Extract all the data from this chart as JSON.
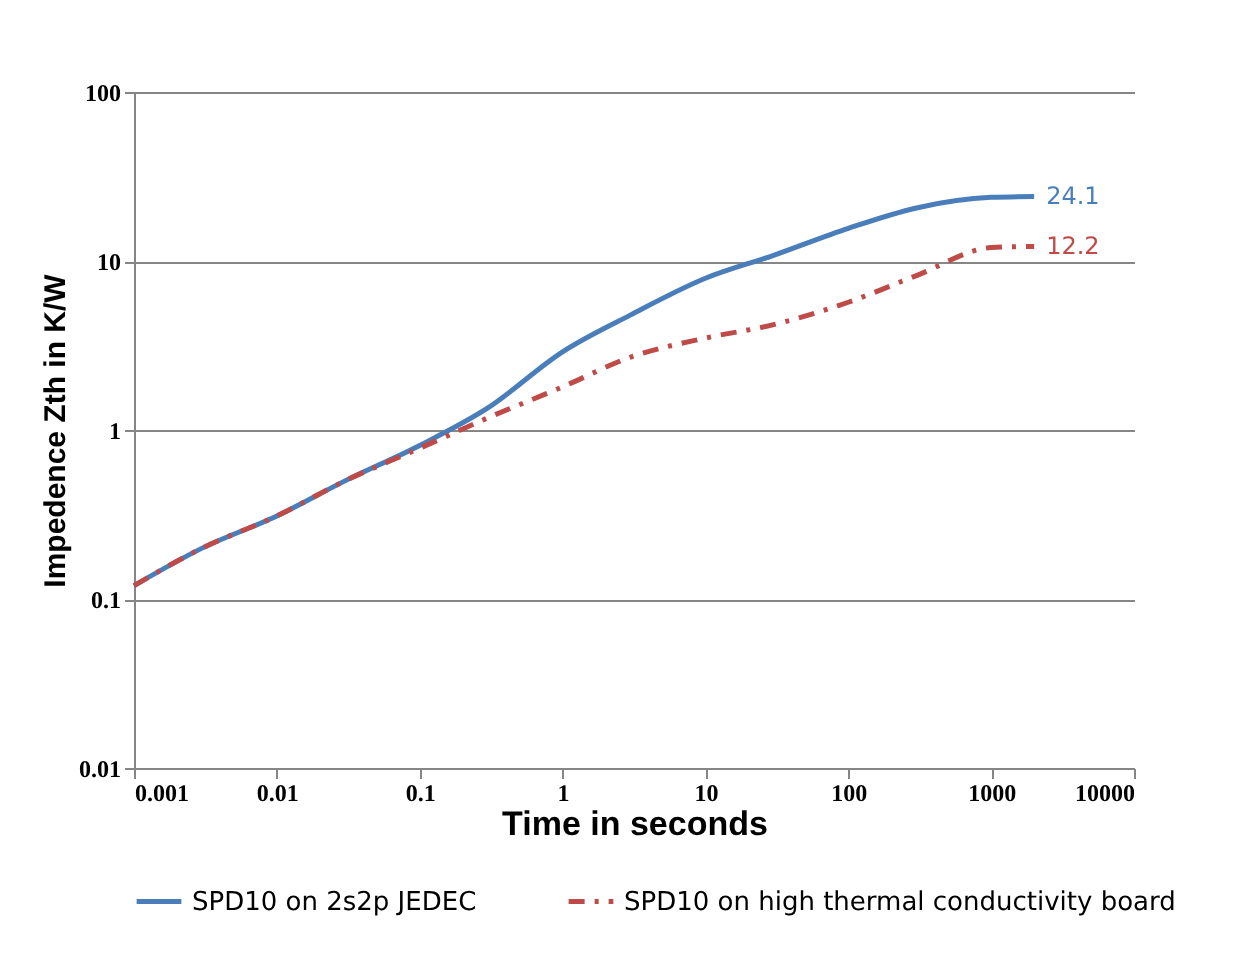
{
  "chart_data": {
    "type": "line",
    "xlabel": "Time in seconds",
    "ylabel": "Impedence Zth in K/W",
    "log": "xy",
    "xlim": [
      0.001,
      10000
    ],
    "ylim": [
      0.01,
      100
    ],
    "xticks": [
      0.001,
      0.01,
      0.1,
      1,
      10,
      100,
      1000,
      10000
    ],
    "yticks": [
      0.01,
      0.1,
      1,
      10,
      100
    ],
    "grid": "y",
    "legend": "bottom",
    "marker": "none",
    "series": [
      {
        "name": "SPD10 on 2s2p JEDEC",
        "color": "#4a7ebb",
        "line_style": "solid",
        "x": [
          0.001,
          0.003,
          0.01,
          0.03,
          0.1,
          0.3,
          1,
          3,
          10,
          30,
          100,
          300,
          1000,
          2000
        ],
        "values": [
          0.12,
          0.2,
          0.31,
          0.5,
          0.81,
          1.35,
          2.9,
          4.8,
          7.9,
          10.8,
          15.6,
          20.6,
          23.8,
          24.1
        ],
        "value_labels": [
          null,
          null,
          null,
          null,
          null,
          null,
          null,
          null,
          null,
          null,
          null,
          null,
          null,
          "24.1"
        ]
      },
      {
        "name": "SPD10 on high thermal conductivity board",
        "color": "#be4b48",
        "line_style": "dashed",
        "x": [
          0.001,
          0.003,
          0.01,
          0.03,
          0.1,
          0.3,
          1,
          3,
          10,
          30,
          100,
          300,
          1000,
          2000
        ],
        "values": [
          0.12,
          0.2,
          0.31,
          0.5,
          0.78,
          1.18,
          1.8,
          2.7,
          3.5,
          4.2,
          5.7,
          8.2,
          12,
          12.2
        ],
        "value_labels": [
          null,
          null,
          null,
          null,
          null,
          null,
          null,
          null,
          null,
          null,
          null,
          null,
          null,
          "12.2"
        ]
      }
    ]
  }
}
